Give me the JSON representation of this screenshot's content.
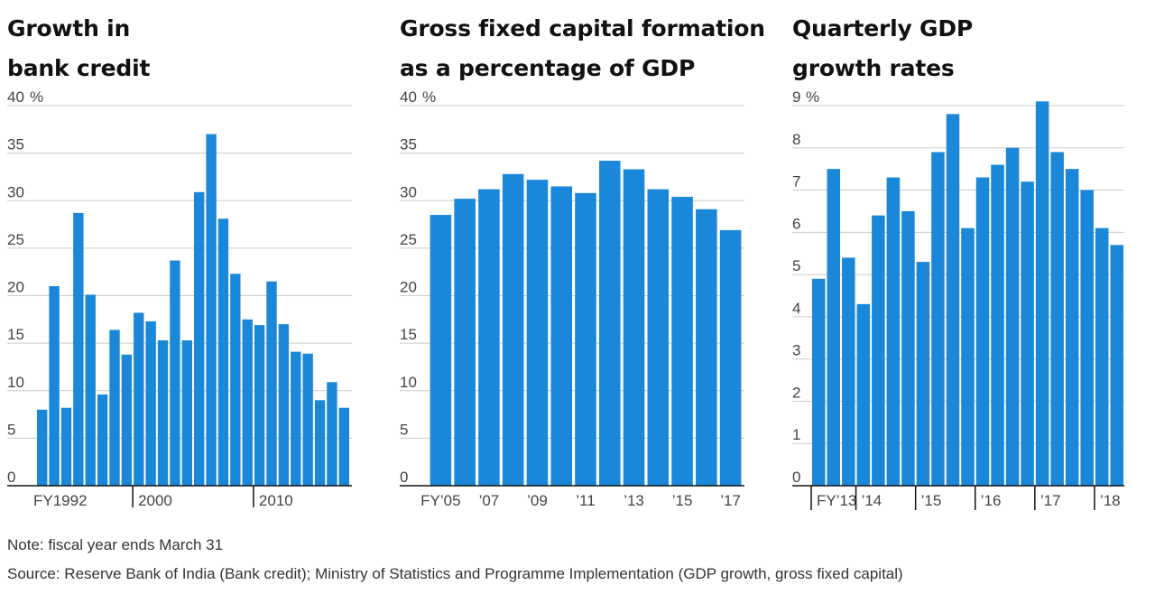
{
  "colors": {
    "bar": "#1a87d9",
    "grid": "#cccccc",
    "axis": "#111111",
    "label": "#444444"
  },
  "chart_data": [
    {
      "type": "bar",
      "title": "Growth in\nbank credit",
      "ylim": [
        0,
        40
      ],
      "yticks": [
        "0",
        "5",
        "10",
        "15",
        "20",
        "25",
        "30",
        "35",
        "40"
      ],
      "unit": "%",
      "grid": true,
      "categories": [
        "1992",
        "1993",
        "1994",
        "1995",
        "1996",
        "1997",
        "1998",
        "1999",
        "2000",
        "2001",
        "2002",
        "2003",
        "2004",
        "2005",
        "2006",
        "2007",
        "2008",
        "2009",
        "2010",
        "2011",
        "2012",
        "2013",
        "2014",
        "2015",
        "2016",
        "2017"
      ],
      "values": [
        8.0,
        21.0,
        8.2,
        28.7,
        20.1,
        9.6,
        16.4,
        13.8,
        18.2,
        17.3,
        15.3,
        23.7,
        15.3,
        30.9,
        37.0,
        28.1,
        22.3,
        17.5,
        16.9,
        21.5,
        17.0,
        14.1,
        13.9,
        9.0,
        10.9,
        8.2
      ],
      "xtick_labels": [
        {
          "index": 0,
          "label": "FY1992"
        },
        {
          "index": 8,
          "label": "2000"
        },
        {
          "index": 18,
          "label": "2010"
        }
      ]
    },
    {
      "type": "bar",
      "title": "Gross fixed capital formation\nas a percentage of GDP",
      "ylim": [
        0,
        40
      ],
      "yticks": [
        "0",
        "5",
        "10",
        "15",
        "20",
        "25",
        "30",
        "35",
        "40"
      ],
      "unit": "%",
      "grid": true,
      "categories": [
        "2005",
        "2006",
        "2007",
        "2008",
        "2009",
        "2010",
        "2011",
        "2012",
        "2013",
        "2014",
        "2015",
        "2016",
        "2017"
      ],
      "values": [
        28.5,
        30.2,
        31.2,
        32.8,
        32.2,
        31.5,
        30.8,
        34.2,
        33.3,
        31.2,
        30.4,
        29.1,
        26.9
      ],
      "xtick_labels": [
        {
          "index": 0,
          "label": "FY’05"
        },
        {
          "index": 2,
          "label": "’07"
        },
        {
          "index": 4,
          "label": "’09"
        },
        {
          "index": 6,
          "label": "’11"
        },
        {
          "index": 8,
          "label": "’13"
        },
        {
          "index": 10,
          "label": "’15"
        },
        {
          "index": 12,
          "label": "’17"
        }
      ]
    },
    {
      "type": "bar",
      "title": "Quarterly GDP\ngrowth rates",
      "ylim": [
        0,
        9
      ],
      "yticks": [
        "0",
        "1",
        "2",
        "3",
        "4",
        "5",
        "6",
        "7",
        "8",
        "9"
      ],
      "unit": "%",
      "grid": true,
      "categories": [
        "FY13 Q1",
        "FY13 Q2",
        "FY13 Q3",
        "FY13 Q4",
        "FY14 Q1",
        "FY14 Q2",
        "FY14 Q3",
        "FY14 Q4",
        "FY15 Q1",
        "FY15 Q2",
        "FY15 Q3",
        "FY15 Q4",
        "FY16 Q1",
        "FY16 Q2",
        "FY16 Q3",
        "FY16 Q4",
        "FY17 Q1",
        "FY17 Q2",
        "FY17 Q3",
        "FY17 Q4",
        "FY18 Q1"
      ],
      "values": [
        4.9,
        7.5,
        5.4,
        4.3,
        6.4,
        7.3,
        6.5,
        5.3,
        7.9,
        8.8,
        6.1,
        7.3,
        7.6,
        8.0,
        7.2,
        9.1,
        7.9,
        7.5,
        7.0,
        6.1,
        5.7
      ],
      "xtick_labels": [
        {
          "index": 0,
          "label": "FY’13"
        },
        {
          "index": 3,
          "label": "’14"
        },
        {
          "index": 7,
          "label": "’15"
        },
        {
          "index": 11,
          "label": "’16"
        },
        {
          "index": 15,
          "label": "’17"
        },
        {
          "index": 19,
          "label": "’18"
        }
      ]
    }
  ],
  "footer": {
    "note": "Note: fiscal year ends March 31",
    "source": "Source: Reserve Bank of India (Bank credit); Ministry of Statistics and Programme Implementation (GDP growth, gross fixed capital)"
  }
}
